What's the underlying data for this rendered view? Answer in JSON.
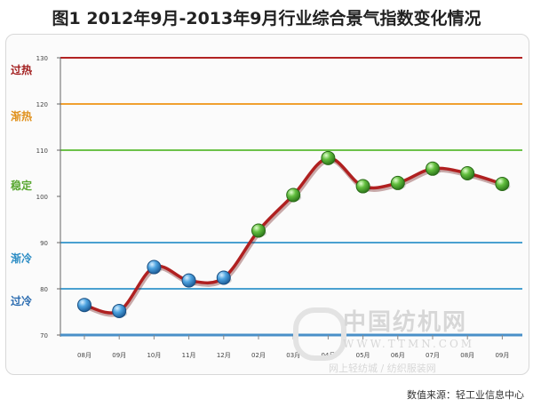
{
  "title": "图1 2012年9月-2013年9月行业综合景气指数变化情况",
  "source": "数值来源：轻工业信息中心",
  "watermark": {
    "name": "中国纺机网",
    "url": "WWW.TTMN.COM",
    "tagline": "网上轻纺城 / 纺织服装网"
  },
  "zones": [
    {
      "label": "过热",
      "value": 130,
      "color": "#b22222",
      "label_color": "#a21e1e"
    },
    {
      "label": "渐热",
      "value": 120,
      "color": "#f0a030",
      "label_color": "#e0901a"
    },
    {
      "label": "稳定",
      "value": 110,
      "color": "#6cc24a",
      "label_color": "#5aa832"
    },
    {
      "label": "渐冷",
      "value": 90,
      "color": "#4aa0d0",
      "label_color": "#2b8cc4"
    },
    {
      "label": "过冷",
      "value": 80,
      "color": "#4aa0d0",
      "label_color": "#2b6cb0"
    }
  ],
  "chart_data": {
    "type": "line",
    "title": "图1 2012年9月-2013年9月行业综合景气指数变化情况",
    "categories": [
      "08月",
      "09月",
      "10月",
      "11月",
      "12月",
      "02月",
      "03月",
      "04月",
      "05月",
      "06月",
      "07月",
      "08月",
      "09月"
    ],
    "series": [
      {
        "values": [
          76.5,
          75.2,
          84.7,
          81.8,
          82.4,
          92.6,
          100.3,
          108.3,
          102.2,
          102.9,
          106.0,
          105.0,
          102.7
        ]
      }
    ],
    "y_ticks": [
      70,
      80,
      90,
      100,
      110,
      120,
      130
    ],
    "ylim": [
      70,
      130
    ],
    "grid": false,
    "line_color": "#b02020",
    "marker_colors": {
      "cold": "#3f8fd0",
      "warm": "#5cb040"
    }
  }
}
